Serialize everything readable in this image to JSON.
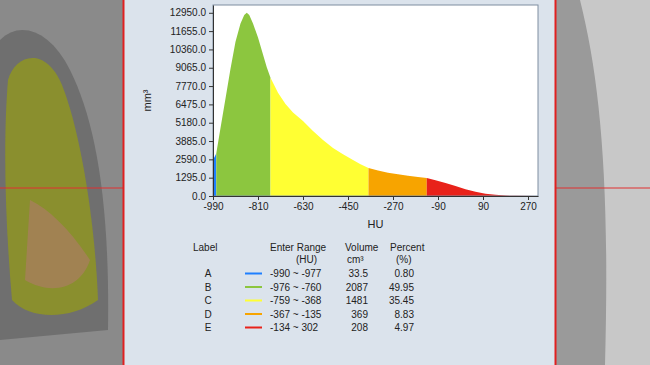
{
  "chart_data": {
    "type": "area",
    "x_label": "HU",
    "y_label": "mm³",
    "xlim": [
      -990,
      310
    ],
    "ylim": [
      0,
      13500
    ],
    "xticks": [
      -990,
      -810,
      -630,
      -450,
      -270,
      -90,
      90,
      270
    ],
    "yticks": [
      {
        "value": 0,
        "label": "0.0"
      },
      {
        "value": 1295,
        "label": "1295.0"
      },
      {
        "value": 2590,
        "label": "2590.0"
      },
      {
        "value": 3885,
        "label": "3885.0"
      },
      {
        "value": 5180,
        "label": "5180.0"
      },
      {
        "value": 6475,
        "label": "6475.0"
      },
      {
        "value": 7770,
        "label": "7770.0"
      },
      {
        "value": 9065,
        "label": "9065.0"
      },
      {
        "value": 10360,
        "label": "10360.0"
      },
      {
        "value": 11655,
        "label": "11655.0"
      },
      {
        "value": 12950,
        "label": "12950.0"
      }
    ],
    "series": [
      {
        "name": "A",
        "color": "#1e7fff",
        "x": [
          -990,
          -984,
          -977
        ],
        "values": [
          2550,
          2750,
          3000
        ]
      },
      {
        "name": "B",
        "color": "#8cc63f",
        "x": [
          -977,
          -960,
          -940,
          -920,
          -900,
          -880,
          -865,
          -855,
          -845,
          -830,
          -810,
          -790,
          -775,
          -760
        ],
        "values": [
          3000,
          4800,
          6900,
          9000,
          10900,
          12200,
          12800,
          12950,
          12800,
          12200,
          11200,
          10000,
          9100,
          8350
        ]
      },
      {
        "name": "C",
        "color": "#ffff33",
        "x": [
          -760,
          -730,
          -700,
          -670,
          -630,
          -590,
          -550,
          -510,
          -470,
          -430,
          -400,
          -368
        ],
        "values": [
          8350,
          7300,
          6500,
          5900,
          5300,
          4600,
          3950,
          3400,
          2950,
          2550,
          2250,
          1980
        ]
      },
      {
        "name": "D",
        "color": "#f7a400",
        "x": [
          -368,
          -330,
          -290,
          -250,
          -210,
          -170,
          -135
        ],
        "values": [
          1980,
          1800,
          1650,
          1530,
          1430,
          1340,
          1270
        ]
      },
      {
        "name": "E",
        "color": "#e8221a",
        "x": [
          -135,
          -100,
          -60,
          -20,
          20,
          60,
          100,
          140,
          180,
          220,
          302
        ],
        "values": [
          1270,
          1120,
          920,
          700,
          480,
          300,
          160,
          80,
          30,
          10,
          0
        ]
      }
    ]
  },
  "table": {
    "columns": [
      {
        "title": "Label"
      },
      {
        "title": "Enter Range",
        "unit": "(HU)"
      },
      {
        "title": "Volume",
        "unit": "cm³"
      },
      {
        "title": "Percent",
        "unit": "(%)"
      }
    ],
    "rows": [
      [
        "-990 ~ -977",
        "33.5",
        "0.80"
      ],
      [
        "-976 ~ -760",
        "2087",
        "49.95"
      ],
      [
        "-759 ~ -368",
        "1481",
        "35.45"
      ],
      [
        "-367 ~ -135",
        "369",
        "8.83"
      ],
      [
        "-134 ~ 302",
        "208",
        "4.97"
      ]
    ]
  }
}
